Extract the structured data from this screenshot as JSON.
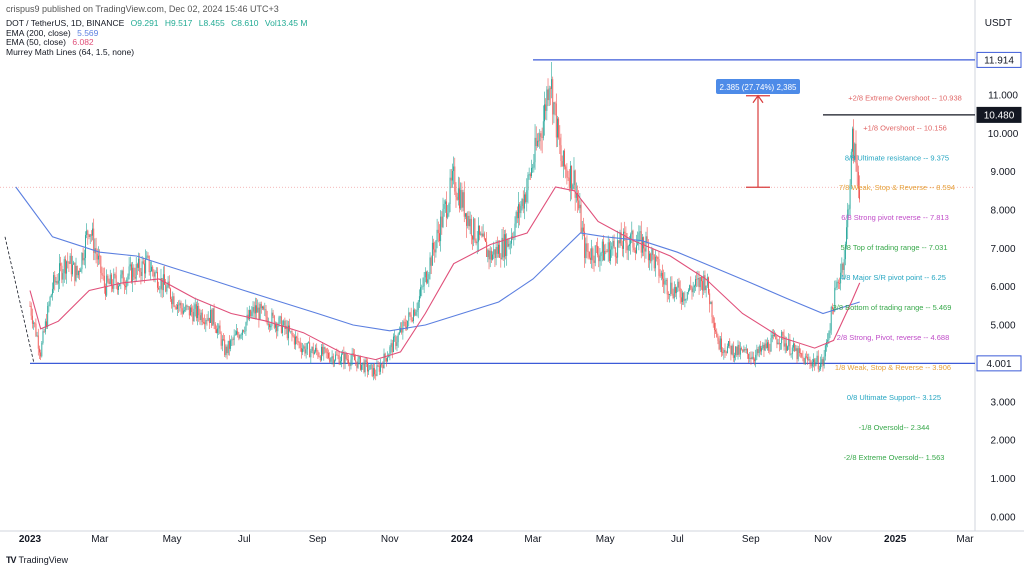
{
  "header": {
    "published_text": "crispus9 published on TradingView.com, Dec 02, 2024 15:46 UTC+3",
    "currency": "USDT"
  },
  "legend": {
    "symbol": "DOT / TetherUS, 1D, BINANCE",
    "ohlc": [
      {
        "k": "O",
        "v": "9.291"
      },
      {
        "k": "H",
        "v": "9.517"
      },
      {
        "k": "L",
        "v": "8.455"
      },
      {
        "k": "C",
        "v": "8.610"
      }
    ],
    "vol_label": "Vol",
    "vol_value": "13.45 M",
    "ema200_label": "EMA (200, close)",
    "ema200_value": "5.569",
    "ema50_label": "EMA (50, close)",
    "ema50_value": "6.082",
    "murrey_label": "Murrey Math Lines (64, 1.5, none)"
  },
  "footer": {
    "brand": "TradingView",
    "logo": "TV"
  },
  "colors": {
    "up": "#26a69a",
    "down": "#ef5350",
    "ema200": "#5b7fe0",
    "ema50": "#e0507a",
    "blueline": "#3c5bd8",
    "measure": "#d93c3c",
    "measure_label_bg": "#4d8be8"
  },
  "chart_data": {
    "type": "candlestick",
    "ylim": [
      0,
      12.4
    ],
    "y_ticks": [
      "0.000",
      "1.000",
      "2.000",
      "3.000",
      "4.000",
      "5.000",
      "6.000",
      "7.000",
      "8.000",
      "9.000",
      "10.000",
      "11.000"
    ],
    "x_ticks": [
      "2023",
      "Mar",
      "May",
      "Jul",
      "Sep",
      "Nov",
      "2024",
      "Mar",
      "May",
      "Jul",
      "Sep",
      "Nov",
      "2025",
      "Mar"
    ],
    "price_tags": [
      {
        "label": "11.914",
        "value": 11.914,
        "style": "blue"
      },
      {
        "label": "10.480",
        "value": 10.48,
        "style": "black"
      },
      {
        "label": "4.001",
        "value": 4.001,
        "style": "blue"
      }
    ],
    "horizontal_lines": [
      {
        "value": 11.914,
        "from": "2024-03",
        "to": "2025-03",
        "color": "blue"
      },
      {
        "value": 10.48,
        "from": "2024-11",
        "to": "2025-03",
        "color": "black"
      },
      {
        "value": 4.001,
        "from": "2023-01",
        "to": "2025-03",
        "color": "blue"
      }
    ],
    "measure": {
      "label": "2.385 (27.74%) 2,385",
      "from": 8.594,
      "to": 10.98
    },
    "murrey_lines": [
      {
        "label": "+2/8 Extreme Overshoot --  10.938",
        "value": 10.938,
        "color": "#e06666"
      },
      {
        "label": "+1/8 Overshoot --  10.156",
        "value": 10.156,
        "color": "#e06666"
      },
      {
        "label": "8/8 Ultimate resistance --  9.375",
        "value": 9.375,
        "color": "#26a6c2"
      },
      {
        "label": "7/8 Weak, Stop & Reverse --  8.594",
        "value": 8.594,
        "color": "#e6a23c"
      },
      {
        "label": "6/8 Strong pivot reverse --  7.813",
        "value": 7.813,
        "color": "#c04cc8"
      },
      {
        "label": "5/8 Top of trading range --  7.031",
        "value": 7.031,
        "color": "#37a84a"
      },
      {
        "label": "4/8 Major S/R pivot point --  6.25",
        "value": 6.25,
        "color": "#26a6c2"
      },
      {
        "label": "3/8 Bottom of trading range --  5.469",
        "value": 5.469,
        "color": "#37a84a"
      },
      {
        "label": "2/8 Strong, Pivot, reverse --  4.688",
        "value": 4.688,
        "color": "#c04cc8"
      },
      {
        "label": "1/8 Weak, Stop & Reverse --  3.906",
        "value": 3.906,
        "color": "#e6a23c"
      },
      {
        "label": "0/8 Ultimate Support--  3.125",
        "value": 3.125,
        "color": "#26a6c2"
      },
      {
        "label": "-1/8 Oversold--  2.344",
        "value": 2.344,
        "color": "#37a84a"
      },
      {
        "label": "-2/8 Extreme Oversold--  1.563",
        "value": 1.563,
        "color": "#37a84a"
      }
    ],
    "price_path": [
      [
        "2023-01-01",
        5.5
      ],
      [
        "2023-01-10",
        4.3
      ],
      [
        "2023-01-20",
        6.0
      ],
      [
        "2023-02-01",
        6.7
      ],
      [
        "2023-02-10",
        6.3
      ],
      [
        "2023-02-20",
        7.6
      ],
      [
        "2023-03-05",
        6.0
      ],
      [
        "2023-03-20",
        6.2
      ],
      [
        "2023-04-10",
        6.6
      ],
      [
        "2023-04-25",
        6.0
      ],
      [
        "2023-05-10",
        5.4
      ],
      [
        "2023-06-05",
        5.2
      ],
      [
        "2023-06-15",
        4.3
      ],
      [
        "2023-07-10",
        5.4
      ],
      [
        "2023-08-01",
        5.0
      ],
      [
        "2023-08-20",
        4.4
      ],
      [
        "2023-09-10",
        4.2
      ],
      [
        "2023-10-01",
        4.1
      ],
      [
        "2023-10-20",
        3.75
      ],
      [
        "2023-11-10",
        4.8
      ],
      [
        "2023-11-25",
        5.6
      ],
      [
        "2023-12-10",
        7.2
      ],
      [
        "2023-12-25",
        8.8
      ],
      [
        "2024-01-10",
        7.5
      ],
      [
        "2024-01-25",
        6.8
      ],
      [
        "2024-02-10",
        7.2
      ],
      [
        "2024-02-25",
        8.6
      ],
      [
        "2024-03-10",
        10.4
      ],
      [
        "2024-03-15",
        11.6
      ],
      [
        "2024-03-25",
        9.2
      ],
      [
        "2024-04-05",
        8.8
      ],
      [
        "2024-04-14",
        6.9
      ],
      [
        "2024-04-30",
        6.9
      ],
      [
        "2024-05-20",
        7.2
      ],
      [
        "2024-06-05",
        7.1
      ],
      [
        "2024-06-20",
        6.1
      ],
      [
        "2024-07-05",
        5.8
      ],
      [
        "2024-07-25",
        6.2
      ],
      [
        "2024-08-05",
        4.5
      ],
      [
        "2024-08-20",
        4.3
      ],
      [
        "2024-09-05",
        4.2
      ],
      [
        "2024-09-25",
        4.7
      ],
      [
        "2024-10-15",
        4.1
      ],
      [
        "2024-11-01",
        4.0
      ],
      [
        "2024-11-10",
        5.6
      ],
      [
        "2024-11-20",
        7.0
      ],
      [
        "2024-11-26",
        9.8
      ],
      [
        "2024-12-02",
        8.6
      ]
    ],
    "ema50_path": [
      [
        "2023-01-01",
        5.9
      ],
      [
        "2023-01-10",
        4.9
      ],
      [
        "2023-01-25",
        5.1
      ],
      [
        "2023-02-20",
        5.9
      ],
      [
        "2023-03-20",
        6.1
      ],
      [
        "2023-04-20",
        6.2
      ],
      [
        "2023-05-20",
        5.7
      ],
      [
        "2023-06-20",
        5.3
      ],
      [
        "2023-07-20",
        5.1
      ],
      [
        "2023-08-20",
        4.8
      ],
      [
        "2023-09-20",
        4.3
      ],
      [
        "2023-10-20",
        4.1
      ],
      [
        "2023-11-10",
        4.3
      ],
      [
        "2023-12-01",
        5.3
      ],
      [
        "2023-12-25",
        6.6
      ],
      [
        "2024-01-25",
        7.1
      ],
      [
        "2024-02-25",
        7.4
      ],
      [
        "2024-03-20",
        8.6
      ],
      [
        "2024-04-05",
        8.5
      ],
      [
        "2024-04-25",
        7.7
      ],
      [
        "2024-05-25",
        7.2
      ],
      [
        "2024-06-25",
        6.8
      ],
      [
        "2024-07-25",
        6.2
      ],
      [
        "2024-08-25",
        5.3
      ],
      [
        "2024-09-25",
        4.7
      ],
      [
        "2024-10-25",
        4.4
      ],
      [
        "2024-11-10",
        4.6
      ],
      [
        "2024-11-25",
        5.6
      ],
      [
        "2024-12-02",
        6.1
      ]
    ],
    "ema200_path": [
      [
        "2022-12-20",
        8.6
      ],
      [
        "2023-01-20",
        7.3
      ],
      [
        "2023-03-01",
        6.9
      ],
      [
        "2023-04-01",
        6.8
      ],
      [
        "2023-05-01",
        6.5
      ],
      [
        "2023-06-01",
        6.2
      ],
      [
        "2023-07-01",
        5.9
      ],
      [
        "2023-08-01",
        5.6
      ],
      [
        "2023-09-01",
        5.3
      ],
      [
        "2023-10-01",
        5.0
      ],
      [
        "2023-11-01",
        4.85
      ],
      [
        "2023-12-01",
        5.0
      ],
      [
        "2024-01-01",
        5.3
      ],
      [
        "2024-02-01",
        5.6
      ],
      [
        "2024-03-01",
        6.2
      ],
      [
        "2024-04-10",
        7.4
      ],
      [
        "2024-05-01",
        7.3
      ],
      [
        "2024-06-01",
        7.2
      ],
      [
        "2024-07-01",
        6.9
      ],
      [
        "2024-08-01",
        6.5
      ],
      [
        "2024-09-01",
        6.1
      ],
      [
        "2024-10-01",
        5.7
      ],
      [
        "2024-11-01",
        5.3
      ],
      [
        "2024-12-02",
        5.6
      ]
    ]
  }
}
